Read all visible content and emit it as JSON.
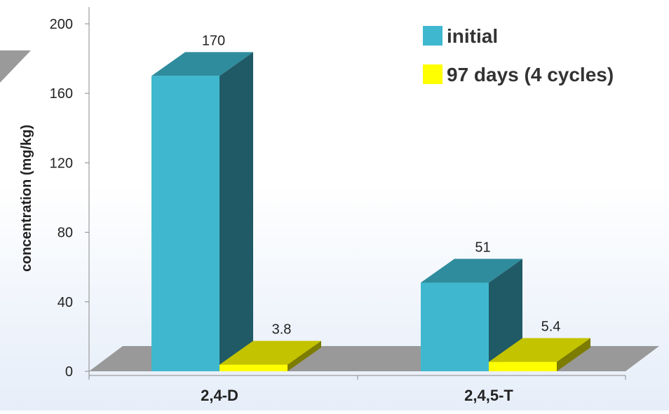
{
  "chart_data": {
    "type": "bar",
    "title": "",
    "xlabel": "",
    "ylabel": "concentration (mg/kg)",
    "ylim": [
      0,
      200
    ],
    "yticks": [
      0,
      40,
      80,
      120,
      160,
      200
    ],
    "categories": [
      "2,4-D",
      "2,4,5-T"
    ],
    "series": [
      {
        "name": "initial",
        "values": [
          170,
          51
        ],
        "data_labels": [
          "170",
          "51"
        ],
        "color": "#3fb8cf"
      },
      {
        "name": "97 days (4 cycles)",
        "values": [
          3.8,
          5.4
        ],
        "data_labels": [
          "3.8",
          "5.4"
        ],
        "color": "#ffff00"
      }
    ],
    "legend_position": "top-right",
    "grid": false,
    "style": "3d-bars",
    "colors": {
      "floor": "#999999",
      "text": "#222222"
    }
  }
}
